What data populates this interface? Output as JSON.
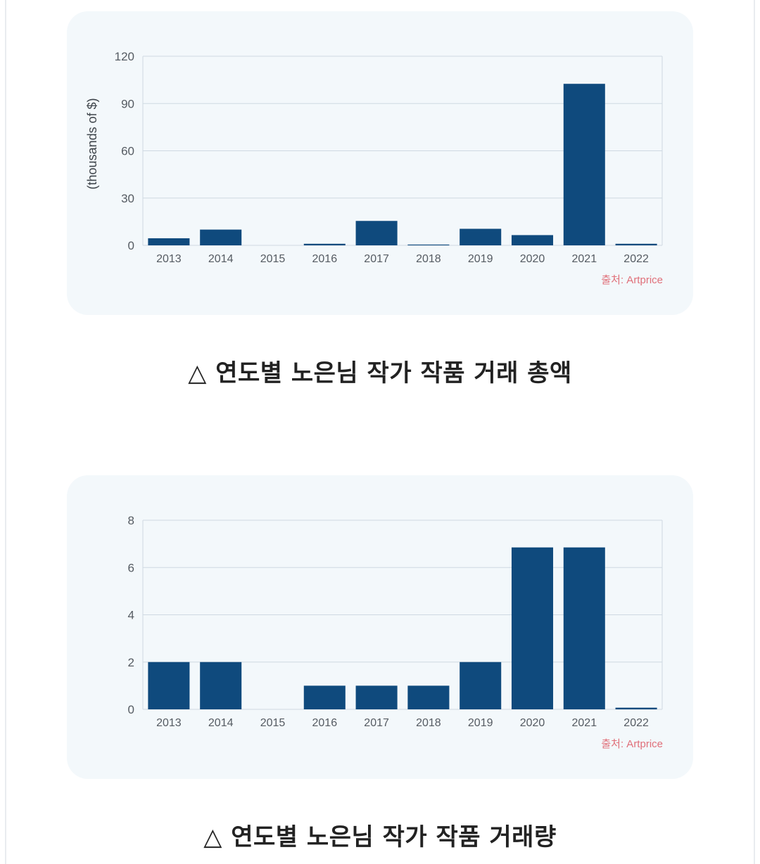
{
  "colors": {
    "bar": "#0f4a7d",
    "grid": "#cfd9e2",
    "card": "#f3f8fb",
    "source": "#e0707a"
  },
  "chart_data": [
    {
      "type": "bar",
      "categories": [
        "2013",
        "2014",
        "2015",
        "2016",
        "2017",
        "2018",
        "2019",
        "2020",
        "2021",
        "2022"
      ],
      "values": [
        4.5,
        10,
        0,
        1,
        15.5,
        0.5,
        10.5,
        6.5,
        102.5,
        1
      ],
      "ylabel": "(thousands of $)",
      "ylim": [
        0,
        120
      ],
      "yticks": [
        0,
        30,
        60,
        90,
        120
      ],
      "grid": true,
      "source": "출처: Artprice",
      "caption": "△ 연도별 노은님 작가 작품 거래 총액"
    },
    {
      "type": "bar",
      "categories": [
        "2013",
        "2014",
        "2015",
        "2016",
        "2017",
        "2018",
        "2019",
        "2020",
        "2021",
        "2022"
      ],
      "values": [
        2,
        2,
        0,
        1,
        1,
        1,
        2,
        6.85,
        6.85,
        0.07
      ],
      "ylabel": "",
      "ylim": [
        0,
        8
      ],
      "yticks": [
        0,
        2,
        4,
        6,
        8
      ],
      "grid": true,
      "source": "출처: Artprice",
      "caption": "△ 연도별 노은님 작가 작품 거래량"
    }
  ]
}
